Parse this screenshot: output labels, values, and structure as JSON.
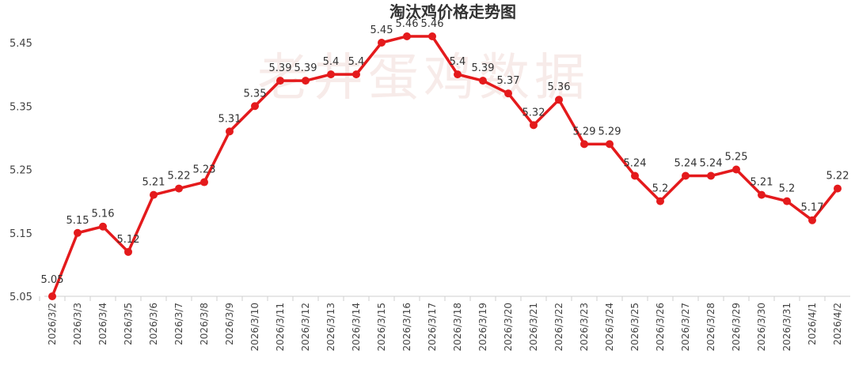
{
  "chart_data": {
    "type": "line",
    "title": "淘汰鸡价格走势图",
    "watermark": "老井蛋鸡数据",
    "x": [
      "2026/3/2",
      "2026/3/3",
      "2026/3/4",
      "2026/3/5",
      "2026/3/6",
      "2026/3/7",
      "2026/3/8",
      "2026/3/9",
      "2026/3/10",
      "2026/3/11",
      "2026/3/12",
      "2026/3/13",
      "2026/3/14",
      "2026/3/15",
      "2026/3/16",
      "2026/3/17",
      "2026/3/18",
      "2026/3/19",
      "2026/3/20",
      "2026/3/21",
      "2026/3/22",
      "2026/3/23",
      "2026/3/24",
      "2026/3/25",
      "2026/3/26",
      "2026/3/27",
      "2026/3/28",
      "2026/3/29",
      "2026/3/30",
      "2026/3/31",
      "2026/4/1",
      "2026/4/2"
    ],
    "values": [
      5.05,
      5.15,
      5.16,
      5.12,
      5.21,
      5.22,
      5.23,
      5.31,
      5.35,
      5.39,
      5.39,
      5.4,
      5.4,
      5.45,
      5.46,
      5.46,
      5.4,
      5.39,
      5.37,
      5.32,
      5.36,
      5.29,
      5.29,
      5.24,
      5.2,
      5.24,
      5.24,
      5.25,
      5.21,
      5.2,
      5.17,
      5.22
    ],
    "data_labels": [
      "5.05",
      "5.15",
      "5.16",
      "5.12",
      "5.21",
      "5.22",
      "5.23",
      "5.31",
      "5.35",
      "5.39",
      "5.39",
      "5.4",
      "5.4",
      "5.45",
      "5.46",
      "5.46",
      "5.4",
      "5.39",
      "5.37",
      "5.32",
      "5.36",
      "5.29",
      "5.29",
      "5.24",
      "5.2",
      "5.24",
      "5.24",
      "5.25",
      "5.21",
      "5.2",
      "5.17",
      "5.22"
    ],
    "yticks": [
      "5.05",
      "5.15",
      "5.25",
      "5.35",
      "5.45"
    ],
    "ylim": [
      5.05,
      5.45
    ],
    "xlabel": "",
    "ylabel": "",
    "grid": false,
    "legend": "none",
    "colors": {
      "line": "#e41a1c",
      "marker": "#e41a1c"
    }
  }
}
